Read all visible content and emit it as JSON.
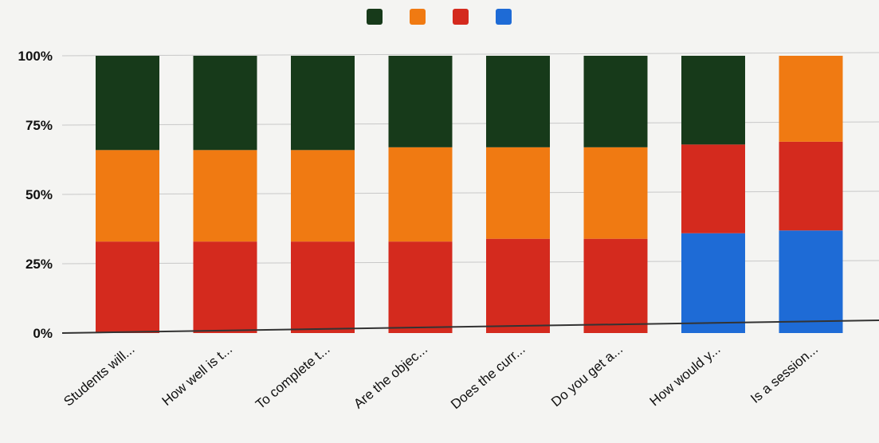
{
  "chart_data": {
    "type": "bar",
    "stacked": "percent",
    "categories": [
      "Students will...",
      "How well is t...",
      "To complete t...",
      "Are the objec...",
      "Does the curr...",
      "Do you get a...",
      "How would y...",
      "Is a session..."
    ],
    "series": [
      {
        "color": "#1e6bd6",
        "values": [
          0,
          0,
          0,
          0,
          0,
          0,
          36,
          37
        ]
      },
      {
        "color": "#d42a1e",
        "values": [
          33,
          33,
          33,
          33,
          34,
          34,
          32,
          32
        ]
      },
      {
        "color": "#f07a12",
        "values": [
          33,
          33,
          33,
          34,
          33,
          33,
          0,
          31
        ]
      },
      {
        "color": "#173a1a",
        "values": [
          34,
          34,
          34,
          33,
          33,
          33,
          32,
          0
        ]
      }
    ],
    "legend_order": [
      3,
      2,
      1,
      0
    ],
    "ylim": [
      0,
      100
    ],
    "yticks": [
      "0%",
      "25%",
      "50%",
      "75%",
      "100%"
    ],
    "legend_position": "top",
    "grid": true,
    "title": "",
    "xlabel": "",
    "ylabel": ""
  }
}
